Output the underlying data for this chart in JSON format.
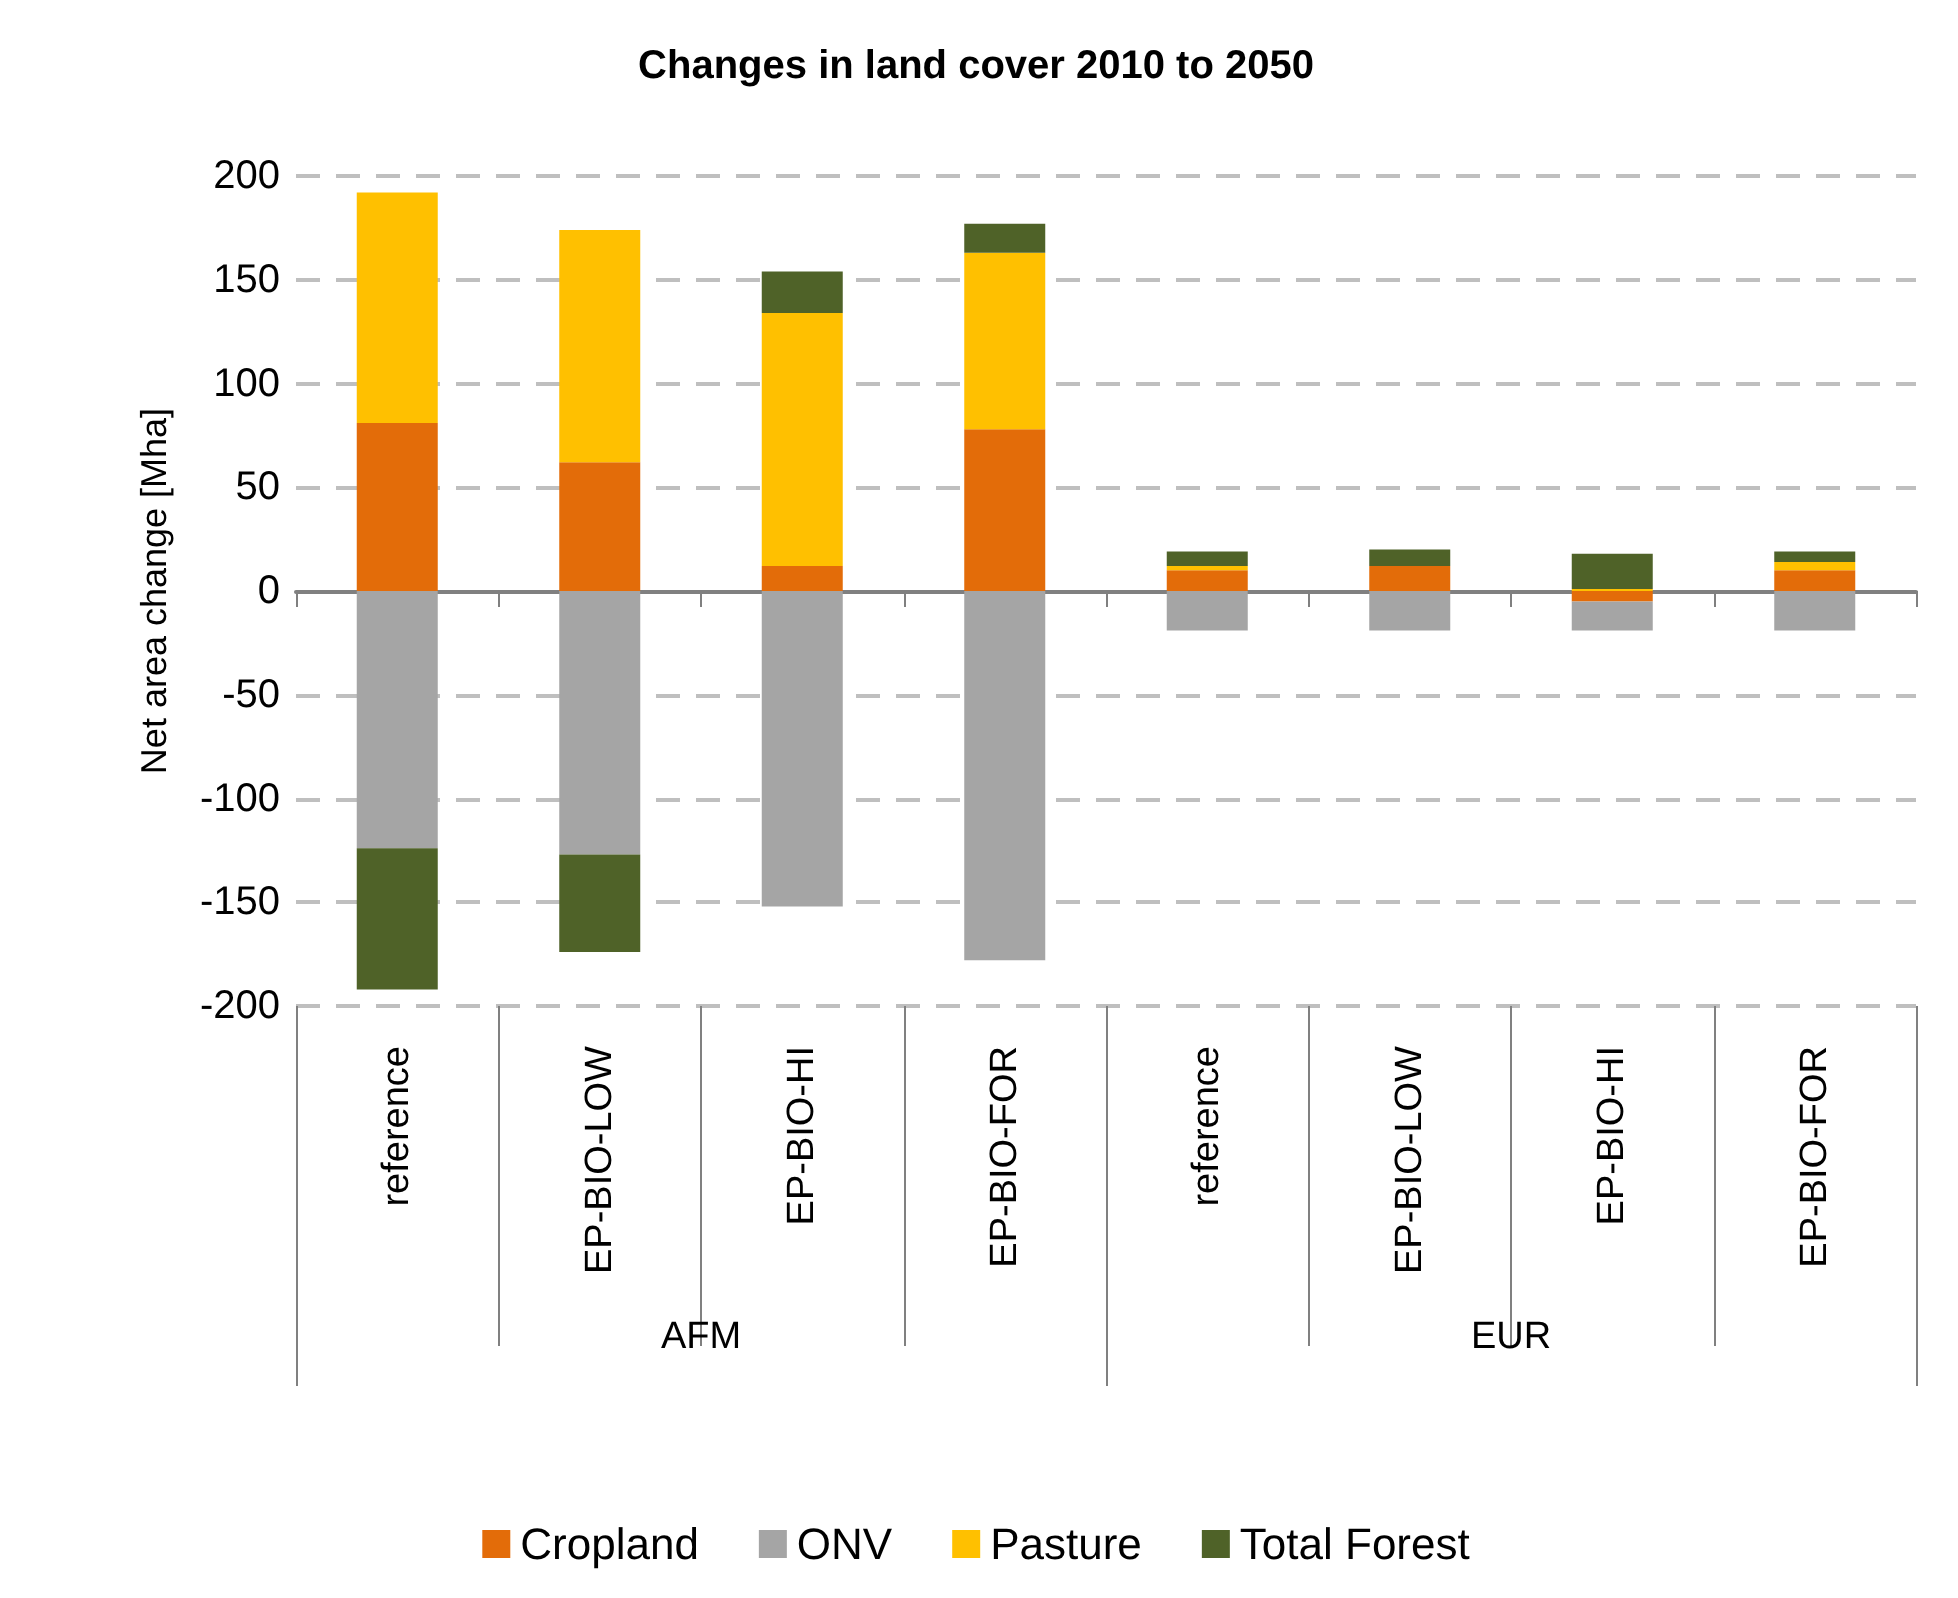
{
  "chart_data": {
    "type": "bar",
    "title": "Changes in land cover 2010 to 2050",
    "ylabel": "Net area change [Mha]",
    "categories": [
      "reference",
      "EP-BIO-LOW",
      "EP-BIO-HI",
      "EP-BIO-FOR",
      "reference",
      "EP-BIO-LOW",
      "EP-BIO-HI",
      "EP-BIO-FOR"
    ],
    "annotations": [
      "AFM",
      "EUR"
    ],
    "stacked": true,
    "series": [
      {
        "name": "Cropland",
        "color": "#e36c09",
        "values": [
          81,
          62,
          12,
          78,
          10,
          12,
          -5,
          10
        ]
      },
      {
        "name": "ONV",
        "color": "#a5a5a5",
        "values": [
          -124,
          -127,
          -152,
          -178,
          -19,
          -19,
          -14,
          -19
        ]
      },
      {
        "name": "Pasture",
        "color": "#ffc000",
        "values": [
          111,
          112,
          122,
          85,
          2,
          0,
          1,
          4
        ]
      },
      {
        "name": "Total Forest",
        "color": "#4f6228",
        "values": [
          -68,
          -47,
          20,
          14,
          7,
          8,
          17,
          5
        ]
      }
    ],
    "ylim": [
      -200,
      200
    ],
    "yticks": [
      -200,
      -150,
      -100,
      -50,
      0,
      50,
      100,
      150,
      200
    ],
    "grid": "y",
    "legend": "bottom"
  }
}
